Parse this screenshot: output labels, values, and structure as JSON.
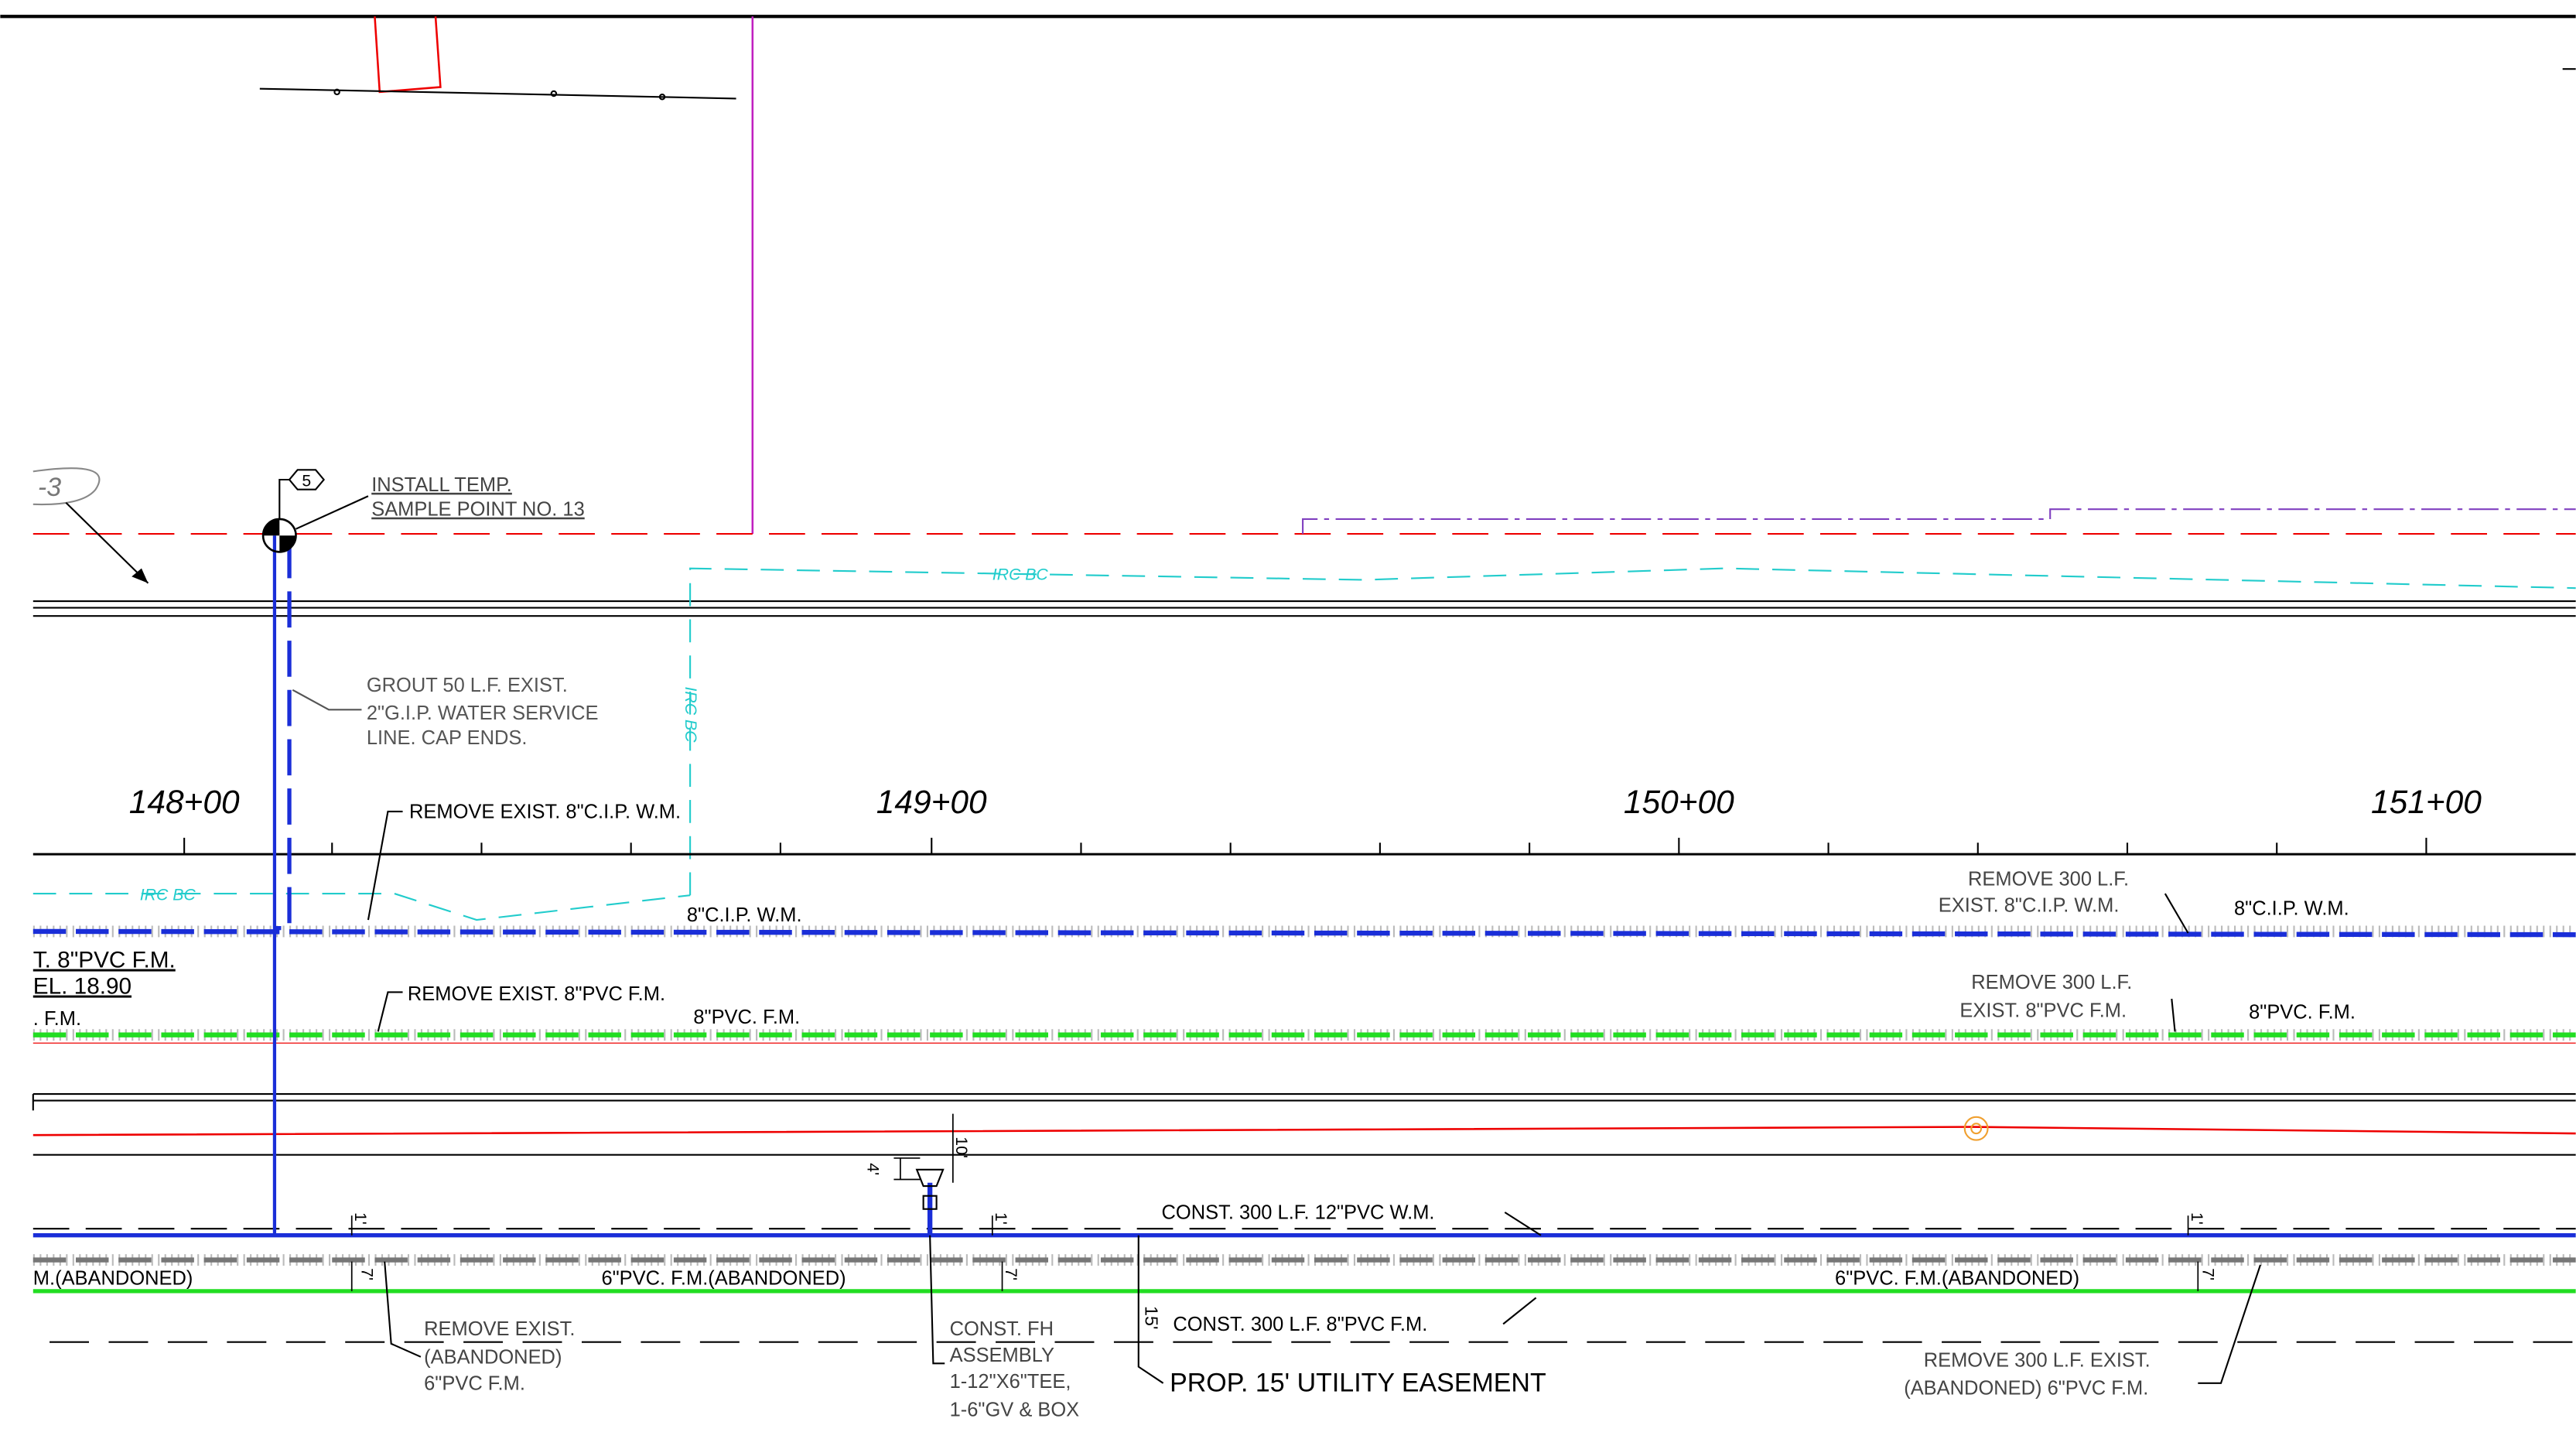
{
  "labels": [
    "-3",
    "5",
    "INSTALL TEMP.",
    "SAMPLE POINT NO. 13",
    "IRC BC",
    "IRC BC",
    "IRC BC",
    "GROUT 50 L.F. EXIST.",
    "2\"G.I.P. WATER SERVICE",
    "LINE. CAP ENDS.",
    "148+00",
    "149+00",
    "150+00",
    "151+00",
    "REMOVE EXIST. 8\"C.I.P. W.M.",
    "8\"C.I.P. W.M.",
    "REMOVE 300 L.F.",
    "EXIST. 8\"C.I.P. W.M.",
    "8\"C.I.P. W.M.",
    "T. 8\"PVC F.M.",
    "EL. 18.90",
    ". F.M.",
    "REMOVE EXIST. 8\"PVC F.M.",
    "8\"PVC. F.M.",
    "REMOVE 300 L.F.",
    "EXIST. 8\"PVC F.M.",
    "8\"PVC. F.M.",
    "10'",
    "4'",
    "1'",
    "7'",
    "1'",
    "7'",
    "1'",
    "7'",
    "CONST. 300 L.F. 12\"PVC W.M.",
    "M.(ABANDONED)",
    "6\"PVC. F.M.(ABANDONED)",
    "6\"PVC. F.M.(ABANDONED)",
    "15'",
    "CONST. 300 L.F. 8\"PVC F.M.",
    "REMOVE EXIST.",
    "(ABANDONED)",
    "6\"PVC F.M.",
    "CONST. FH",
    "ASSEMBLY",
    "1-12\"X6\"TEE,",
    "1-6\"GV & BOX",
    "PROP. 15' UTILITY EASEMENT",
    "REMOVE 300 L.F. EXIST.",
    "(ABANDONED) 6\"PVC F.M."
  ]
}
